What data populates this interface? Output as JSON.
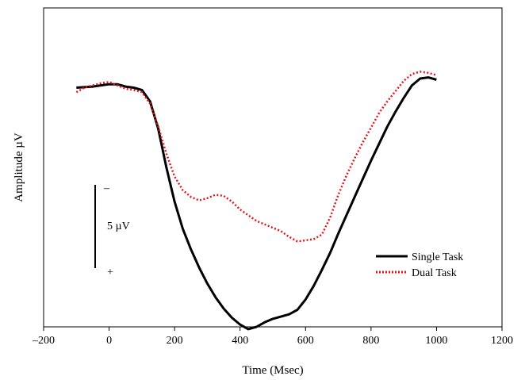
{
  "chart_data": {
    "type": "line",
    "xlabel": "Time (Msec)",
    "ylabel": "Amplitude µV",
    "xlim": [
      -200,
      1200
    ],
    "xticks": [
      -200,
      0,
      200,
      400,
      600,
      800,
      1000,
      1200
    ],
    "xtick_labels": [
      "–200",
      "0",
      "200",
      "400",
      "600",
      "800",
      "1000",
      "1200"
    ],
    "ylim": [
      -10.5,
      3.5
    ],
    "grid": false,
    "legend_position": "bottom-right",
    "scale_bar": {
      "label": "5 µV",
      "top_sign": "–",
      "bottom_sign": "+",
      "value": 5
    },
    "series": [
      {
        "name": "Single Task",
        "color": "#000000",
        "style": "solid",
        "x": [
          -100,
          -50,
          -25,
          0,
          25,
          50,
          75,
          100,
          125,
          150,
          175,
          200,
          225,
          250,
          275,
          300,
          325,
          350,
          375,
          400,
          425,
          450,
          475,
          500,
          525,
          550,
          575,
          600,
          625,
          650,
          675,
          700,
          725,
          750,
          775,
          800,
          825,
          850,
          875,
          900,
          925,
          950,
          975,
          1000
        ],
        "y": [
          0,
          0.05,
          0.1,
          0.15,
          0.15,
          0.05,
          0,
          -0.1,
          -0.6,
          -1.8,
          -3.5,
          -5.0,
          -6.2,
          -7.1,
          -7.9,
          -8.6,
          -9.2,
          -9.7,
          -10.1,
          -10.4,
          -10.6,
          -10.5,
          -10.3,
          -10.15,
          -10.05,
          -9.95,
          -9.75,
          -9.3,
          -8.7,
          -8.0,
          -7.25,
          -6.4,
          -5.6,
          -4.8,
          -4.0,
          -3.2,
          -2.45,
          -1.7,
          -1.05,
          -0.45,
          0.1,
          0.4,
          0.45,
          0.35
        ]
      },
      {
        "name": "Dual Task",
        "color": "#e8161b",
        "style": "dotted",
        "x": [
          -100,
          -75,
          -50,
          -25,
          0,
          25,
          50,
          75,
          100,
          125,
          150,
          175,
          200,
          225,
          250,
          275,
          300,
          325,
          350,
          375,
          400,
          425,
          450,
          475,
          500,
          525,
          550,
          575,
          600,
          625,
          650,
          675,
          700,
          725,
          750,
          775,
          800,
          825,
          850,
          875,
          900,
          925,
          950,
          975,
          1000
        ],
        "y": [
          -0.2,
          0,
          0.1,
          0.2,
          0.25,
          0.1,
          -0.05,
          -0.1,
          -0.2,
          -0.7,
          -1.7,
          -2.9,
          -3.9,
          -4.5,
          -4.8,
          -4.95,
          -4.85,
          -4.7,
          -4.75,
          -5.0,
          -5.35,
          -5.6,
          -5.85,
          -6.0,
          -6.15,
          -6.3,
          -6.55,
          -6.75,
          -6.7,
          -6.65,
          -6.45,
          -5.7,
          -4.7,
          -3.85,
          -3.1,
          -2.4,
          -1.75,
          -1.1,
          -0.6,
          -0.15,
          0.3,
          0.6,
          0.7,
          0.65,
          0.55
        ]
      }
    ]
  }
}
